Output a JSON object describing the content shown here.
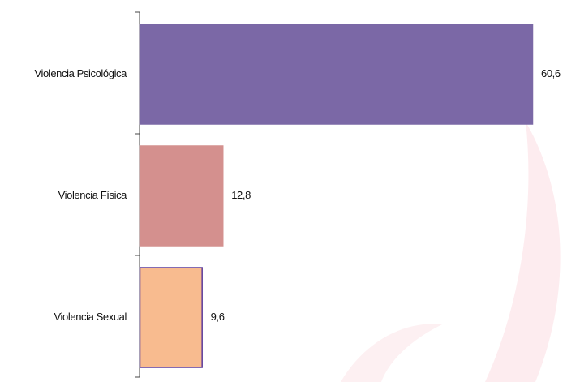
{
  "chart_data": {
    "type": "barh",
    "categories": [
      "Violencia Psicológica",
      "Violencia Física",
      "Violencia Sexual"
    ],
    "values": [
      60.6,
      12.8,
      9.6
    ],
    "value_labels": [
      "60,6",
      "12,8",
      "9,6"
    ],
    "colors": [
      "#7b68a6",
      "#d4908e",
      "#f8bb8f"
    ],
    "edgecolors": [
      "#7b68a6",
      "#d4908e",
      "#5b3a9a"
    ]
  }
}
